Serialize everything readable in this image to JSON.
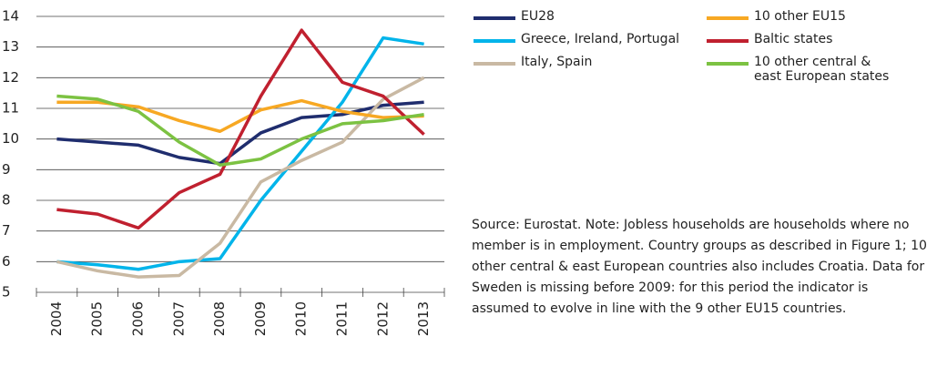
{
  "chart_data": {
    "type": "line",
    "categories": [
      "2004",
      "2005",
      "2006",
      "2007",
      "2008",
      "2009",
      "2010",
      "2011",
      "2012",
      "2013"
    ],
    "series": [
      {
        "name": "EU28",
        "color": "#1f2d6e",
        "values": [
          10.0,
          9.9,
          9.8,
          9.4,
          9.2,
          10.2,
          10.7,
          10.8,
          11.1,
          11.2
        ]
      },
      {
        "name": "Greece, Ireland, Portugal",
        "color": "#00b4ea",
        "values": [
          6.0,
          5.9,
          5.75,
          6.0,
          6.1,
          8.0,
          9.6,
          11.2,
          13.3,
          13.1
        ]
      },
      {
        "name": "Italy, Spain",
        "color": "#c9b9a3",
        "values": [
          6.0,
          5.7,
          5.5,
          5.55,
          6.6,
          8.6,
          9.3,
          9.9,
          11.3,
          12.0
        ]
      },
      {
        "name": "10 other EU15",
        "color": "#f7a823",
        "values": [
          11.2,
          11.2,
          11.05,
          10.6,
          10.25,
          10.95,
          11.25,
          10.9,
          10.7,
          10.75
        ]
      },
      {
        "name": "Baltic states",
        "color": "#c0202f",
        "values": [
          7.7,
          7.55,
          7.1,
          8.25,
          8.85,
          11.4,
          13.55,
          11.85,
          11.4,
          10.15
        ]
      },
      {
        "name": "10 other central & east European states",
        "color": "#7cc242",
        "values": [
          11.4,
          11.3,
          10.9,
          9.9,
          9.15,
          9.35,
          10.0,
          10.5,
          10.6,
          10.8
        ]
      }
    ],
    "ylim": [
      5,
      14
    ],
    "yticks": [
      5,
      6,
      7,
      8,
      9,
      10,
      11,
      12,
      13,
      14
    ],
    "grid": true,
    "note": "Source: Eurostat. Note: Jobless households are households where no member is in employment. Country groups as described in Figure 1; 10 other central & east European countries also includes Croatia. Data for Sweden is missing before 2009: for this period the indicator is assumed to evolve in line with the 9 other EU15 countries."
  }
}
